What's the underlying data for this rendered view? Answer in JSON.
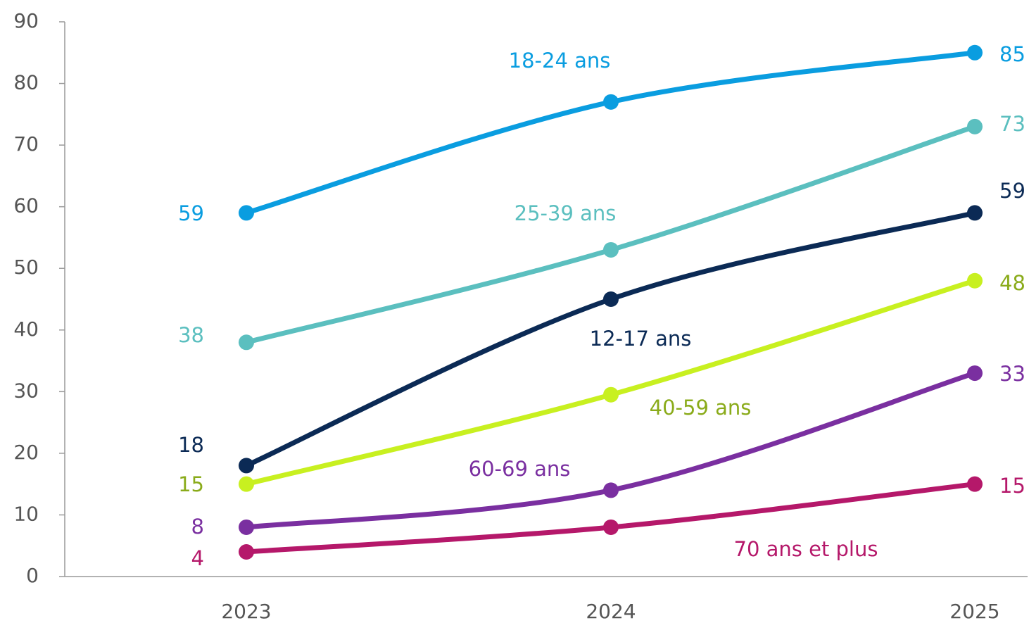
{
  "chart_data": {
    "type": "line",
    "categories": [
      "2023",
      "2024",
      "2025"
    ],
    "ylim": [
      0,
      90
    ],
    "yticks": [
      0,
      10,
      20,
      30,
      40,
      50,
      60,
      70,
      80,
      90
    ],
    "series": [
      {
        "name": "18-24 ans",
        "color": "#0a9de0",
        "values": [
          59,
          77,
          85
        ]
      },
      {
        "name": "25-39 ans",
        "color": "#5bbfbf",
        "values": [
          38,
          53,
          73
        ]
      },
      {
        "name": "12-17 ans",
        "color": "#0b2a55",
        "values": [
          18,
          45,
          59
        ]
      },
      {
        "name": "40-59 ans",
        "color": "#c8f020",
        "values": [
          15,
          29.5,
          48
        ]
      },
      {
        "name": "60-69 ans",
        "color": "#7a2fa0",
        "values": [
          8,
          14,
          33
        ]
      },
      {
        "name": "70 ans et plus",
        "color": "#b5186a",
        "values": [
          4,
          8,
          15
        ]
      }
    ]
  }
}
